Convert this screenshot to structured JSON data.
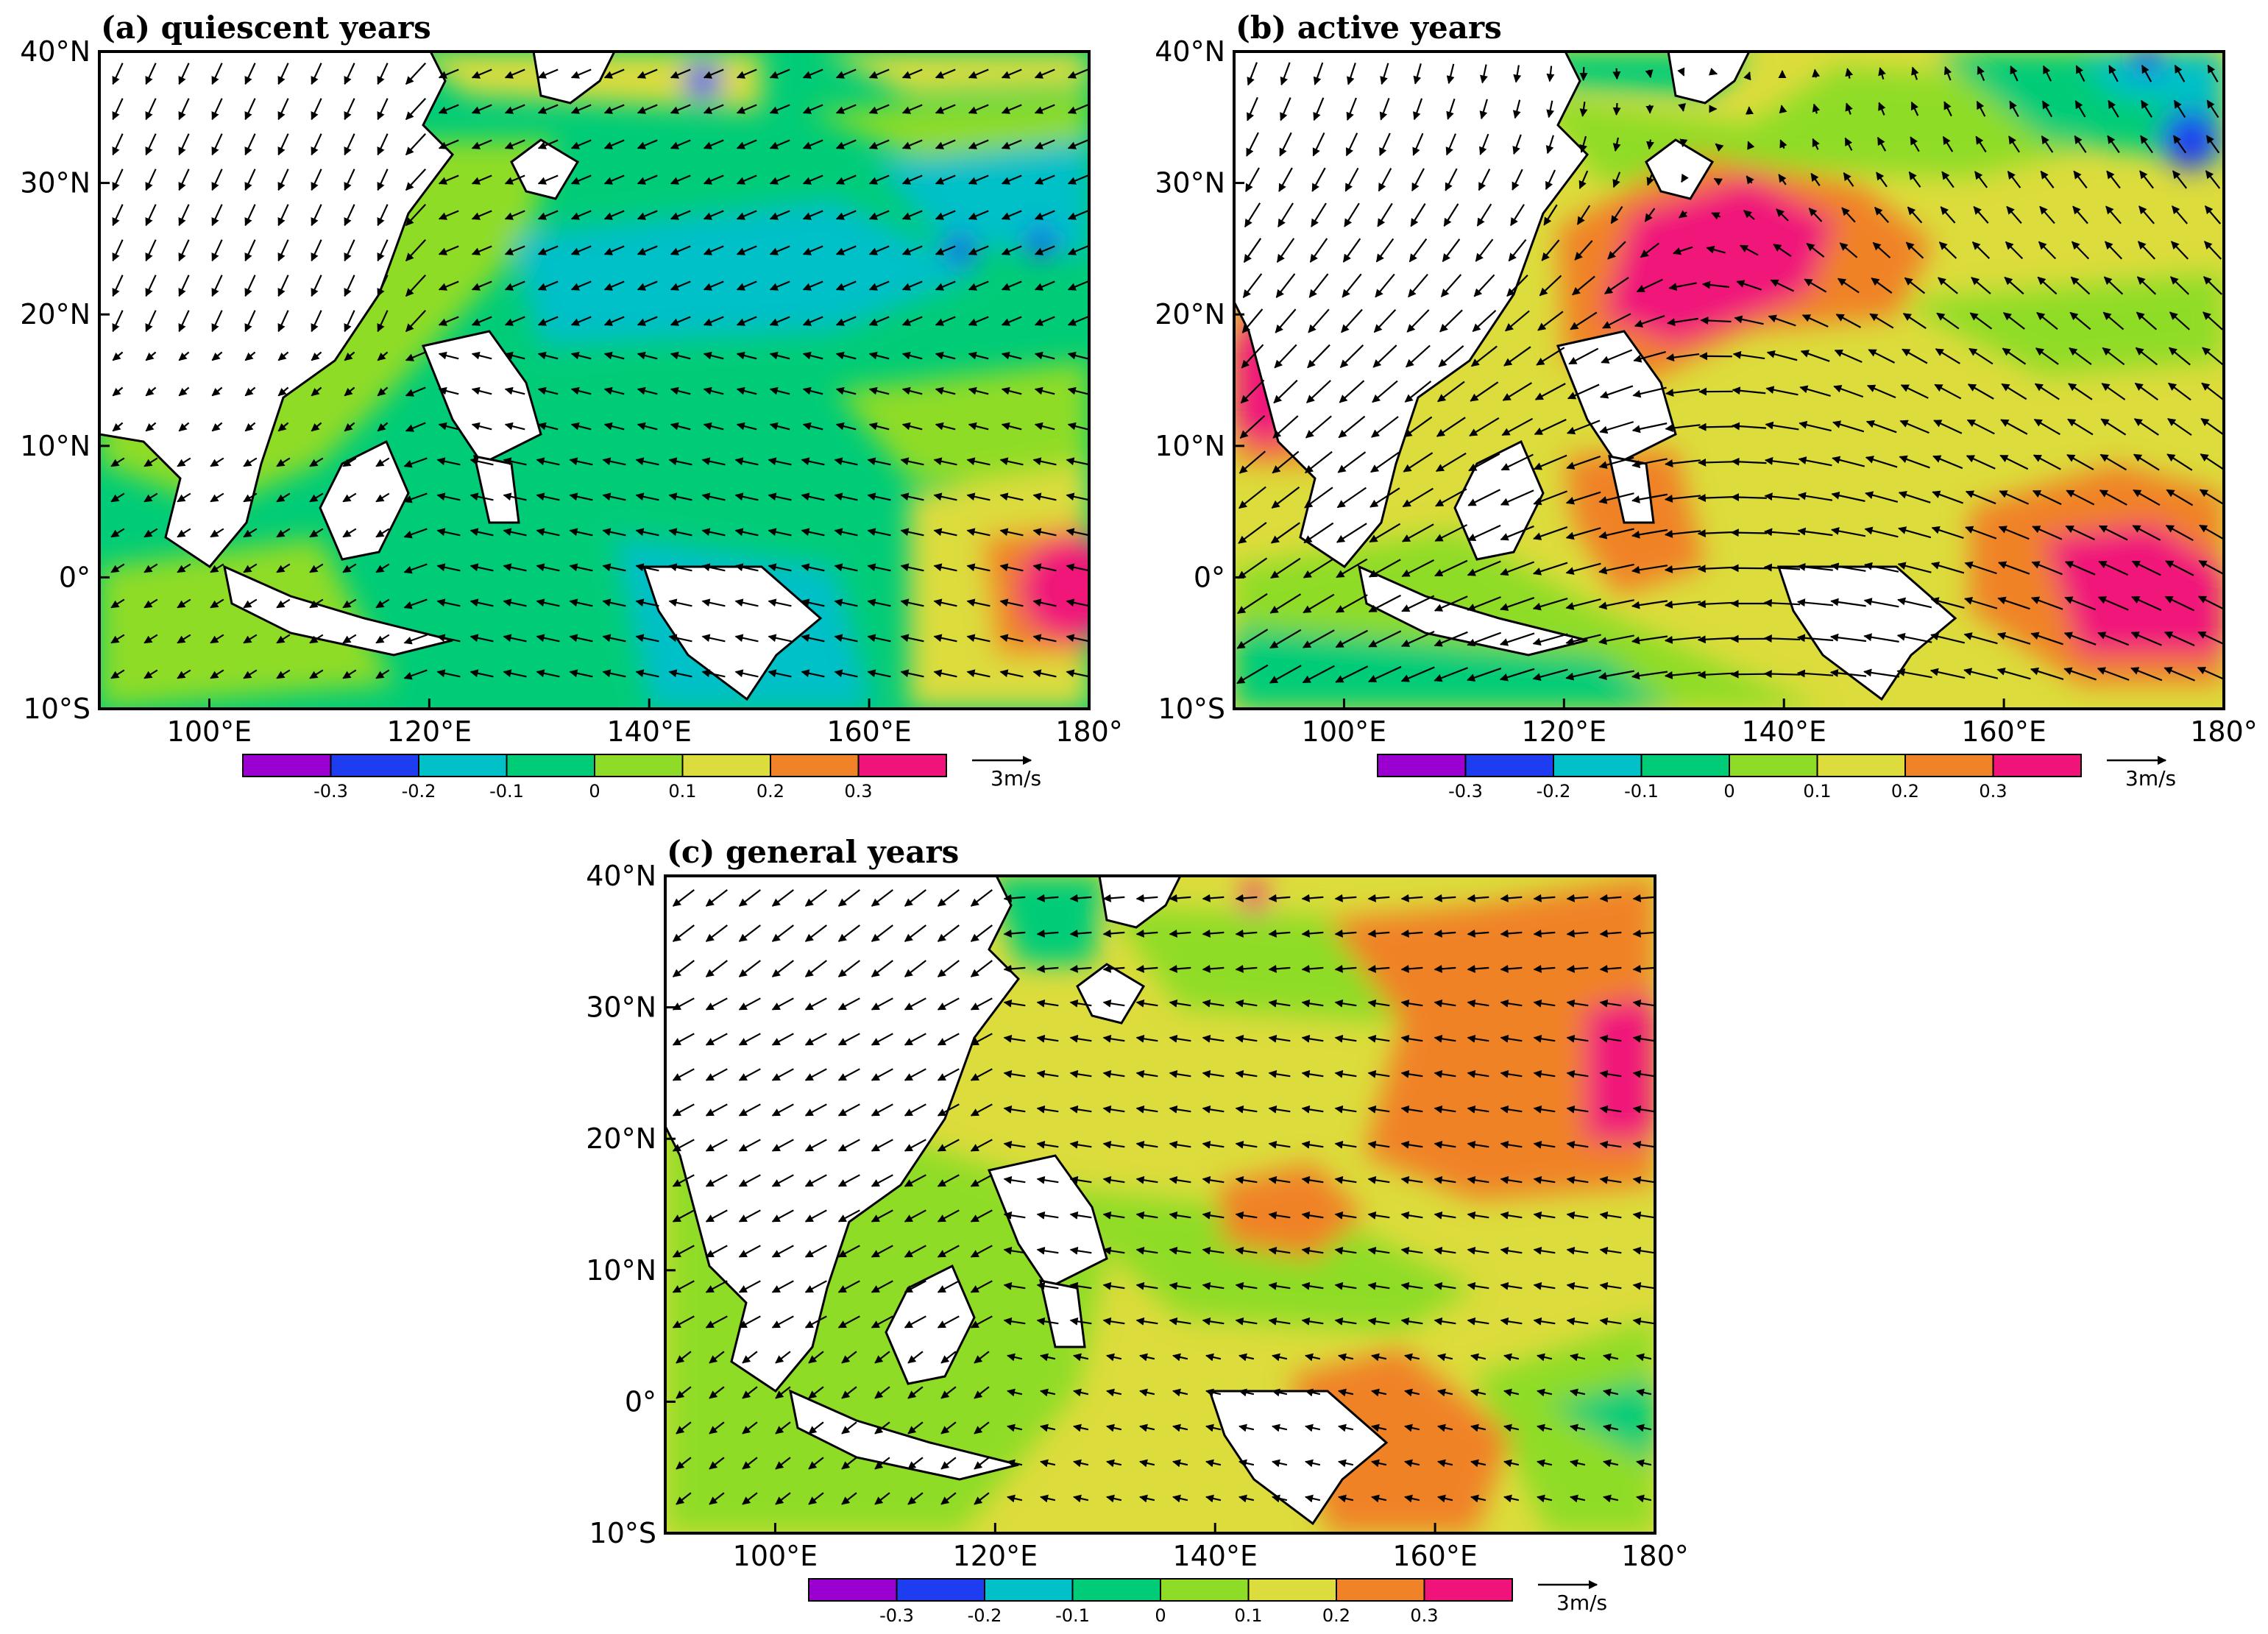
{
  "figure": {
    "panels": [
      {
        "id": "a",
        "title": "(a) quiescent years"
      },
      {
        "id": "b",
        "title": "(b) active years"
      },
      {
        "id": "c",
        "title": "(c) general  years"
      }
    ],
    "lat_labels": [
      "40°N",
      "30°N",
      "20°N",
      "10°N",
      "0°",
      "10°S"
    ],
    "lon_labels": [
      "100°E",
      "120°E",
      "140°E",
      "160°E",
      "180°"
    ],
    "colorbar": {
      "labels": [
        "-0.3",
        "-0.2",
        "-0.1",
        "0",
        "0.1",
        "0.2",
        "0.3"
      ],
      "colors": [
        "#9b00d0",
        "#1e3cf0",
        "#00c0c8",
        "#00cc78",
        "#8fdc28",
        "#dcdc3c",
        "#f08228",
        "#f0147a"
      ]
    },
    "reference_vector": {
      "label": "3m/s"
    },
    "land_color": "#ffffff"
  }
}
